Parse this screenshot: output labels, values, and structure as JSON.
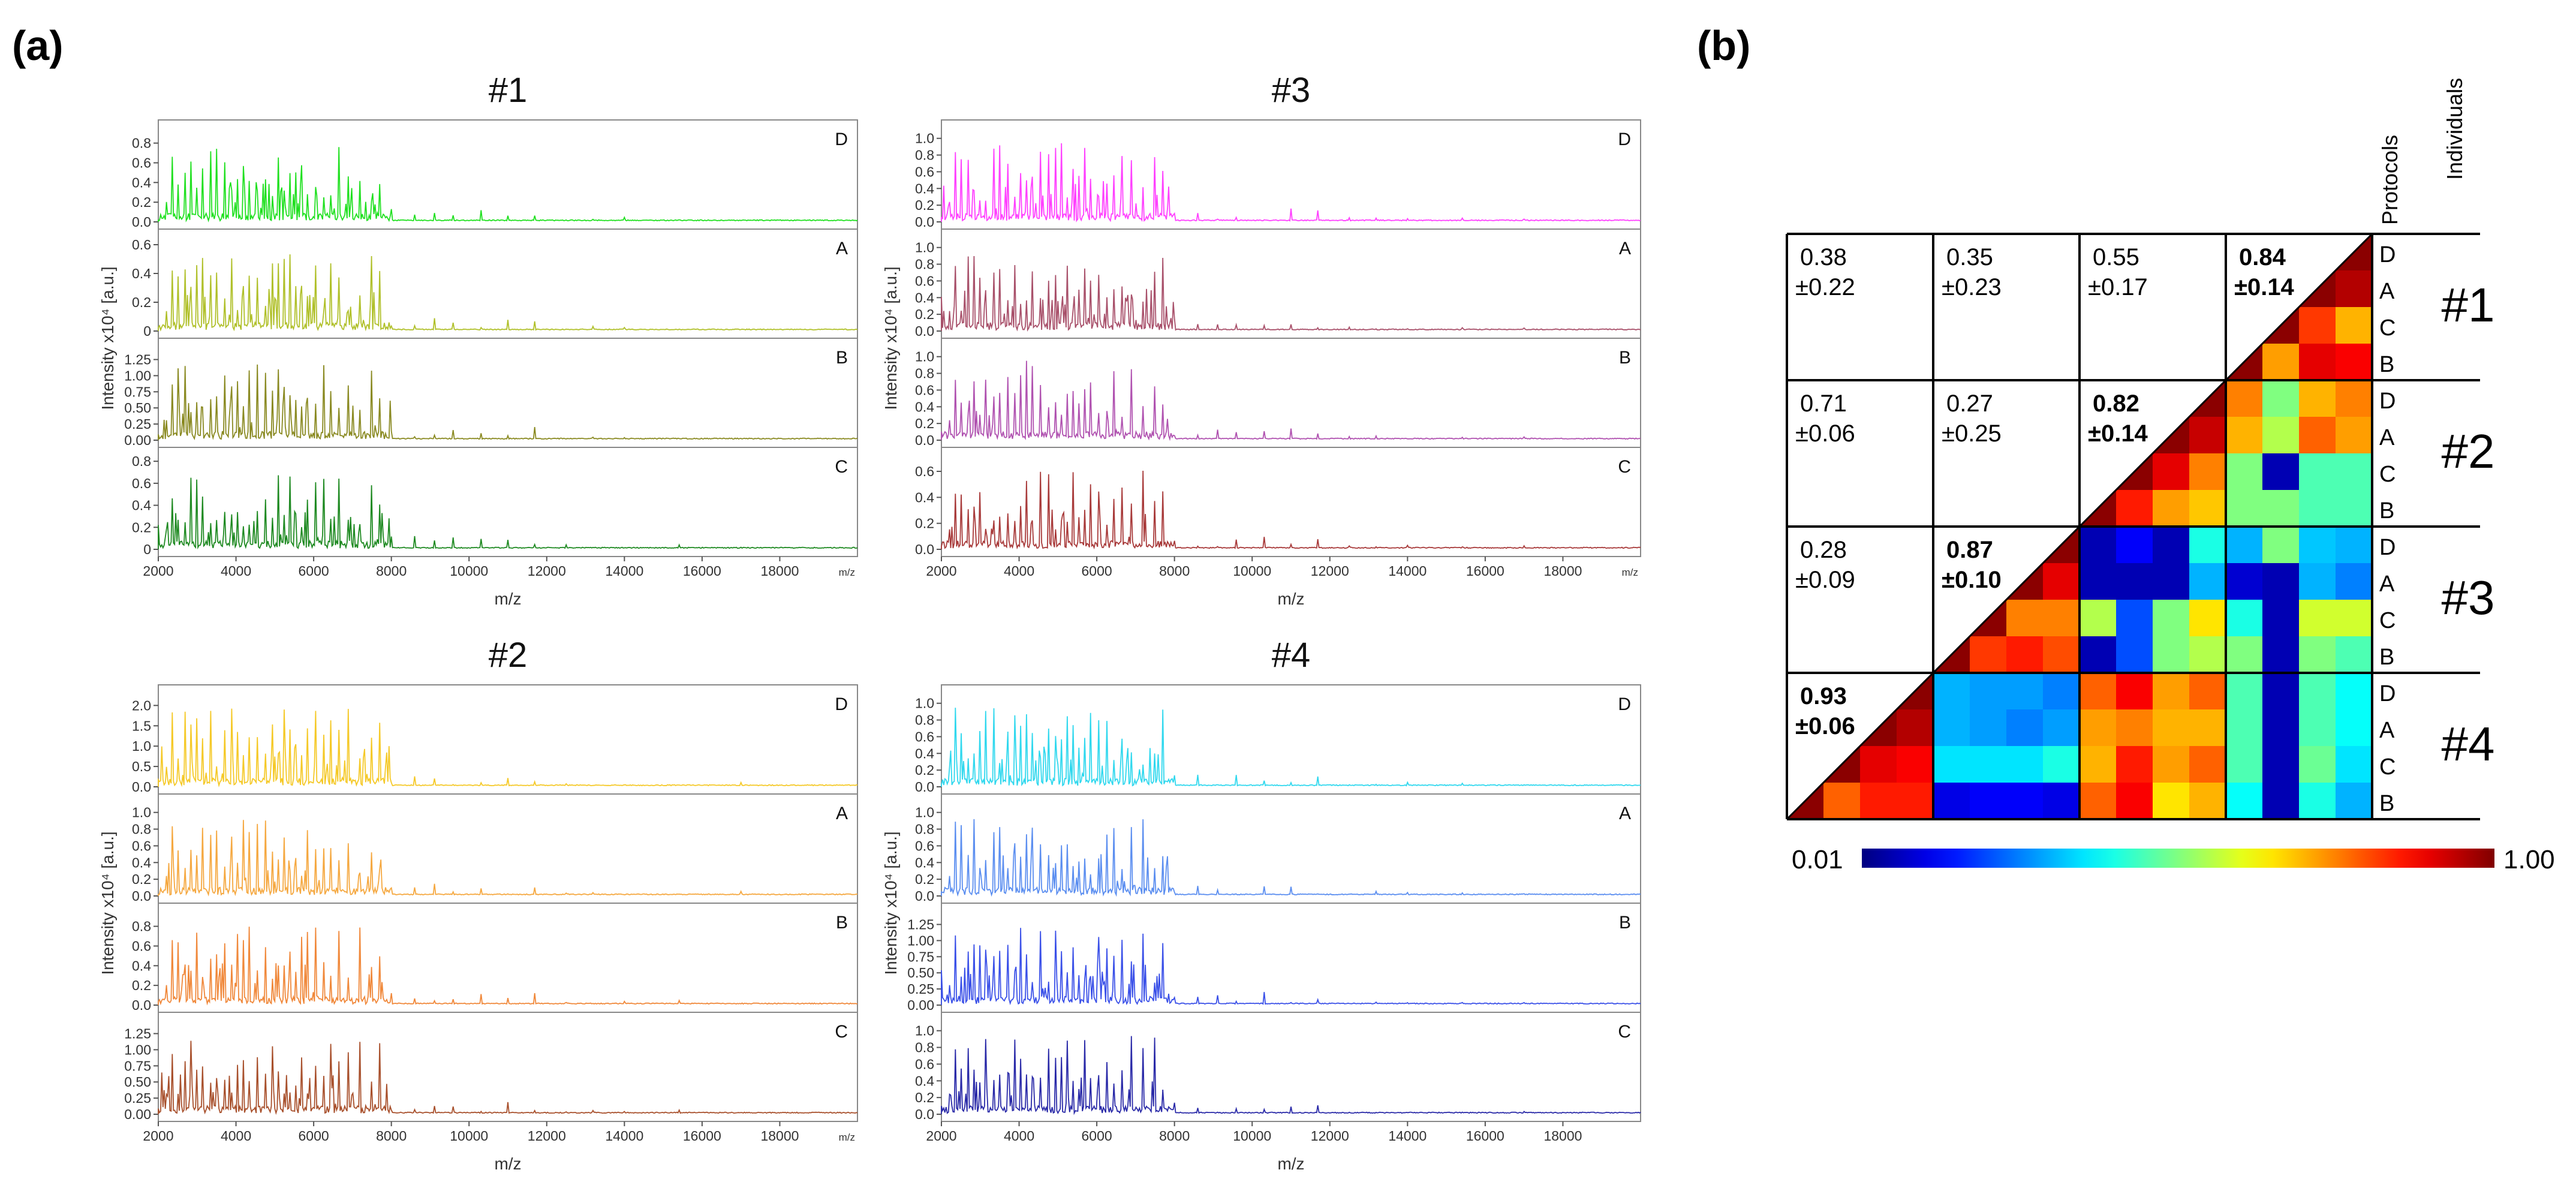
{
  "panel_a_label": "(a)",
  "panel_b_label": "(b)",
  "colors": {
    "1": [
      "#20e020",
      "#b0c02a",
      "#8a8a22",
      "#1f8a22"
    ],
    "3": [
      "#ff40ff",
      "#a8506a",
      "#b052b0",
      "#a83a3a"
    ],
    "2": [
      "#f5c928",
      "#f5a840",
      "#f0883a",
      "#a8502c"
    ],
    "4": [
      "#30d8ee",
      "#5b8ef0",
      "#3a50e8",
      "#2a2aa8"
    ]
  },
  "chart_data": [
    {
      "type": "line",
      "title": "#1",
      "xlabel": "m/z",
      "ylabel": "Intensity x10⁴ [a.u.]",
      "xlim": [
        2000,
        20000
      ],
      "x_ticks": [
        "2000",
        "4000",
        "6000",
        "8000",
        "10000",
        "12000",
        "14000",
        "16000",
        "18000"
      ],
      "x_unit": "m/z",
      "series": [
        {
          "name": "D",
          "ymax": 0.95,
          "y_ticks": [
            "0.8",
            "0.6",
            "0.4",
            "0.2",
            "0.0"
          ]
        },
        {
          "name": "A",
          "ymax": 0.65,
          "y_ticks": [
            "0.6",
            "0.4",
            "0.2",
            "0"
          ]
        },
        {
          "name": "B",
          "ymax": 1.45,
          "y_ticks": [
            "1.25",
            "1.00",
            "0.75",
            "0.50",
            "0.25",
            "0.00"
          ]
        },
        {
          "name": "C",
          "ymax": 0.85,
          "y_ticks": [
            "0.8",
            "0.6",
            "0.4",
            "0.2",
            "0"
          ]
        }
      ]
    },
    {
      "type": "line",
      "title": "#3",
      "xlabel": "m/z",
      "ylabel": "Intensity x10⁴ [a.u.]",
      "xlim": [
        2000,
        20000
      ],
      "x_ticks": [
        "2000",
        "4000",
        "6000",
        "8000",
        "10000",
        "12000",
        "14000",
        "16000",
        "18000"
      ],
      "x_unit": "m/z",
      "series": [
        {
          "name": "D",
          "ymax": 1.12,
          "y_ticks": [
            "1.0",
            "0.8",
            "0.6",
            "0.4",
            "0.2",
            "0.0"
          ]
        },
        {
          "name": "A",
          "ymax": 1.12,
          "y_ticks": [
            "1.0",
            "0.8",
            "0.6",
            "0.4",
            "0.2",
            "0.0"
          ]
        },
        {
          "name": "B",
          "ymax": 1.12,
          "y_ticks": [
            "1.0",
            "0.8",
            "0.6",
            "0.4",
            "0.2",
            "0.0"
          ]
        },
        {
          "name": "C",
          "ymax": 0.72,
          "y_ticks": [
            "0.6",
            "0.4",
            "0.2",
            "0.0"
          ]
        }
      ]
    },
    {
      "type": "line",
      "title": "#2",
      "xlabel": "m/z",
      "ylabel": "Intensity x10⁴ [a.u.]",
      "xlim": [
        2000,
        20000
      ],
      "x_ticks": [
        "2000",
        "4000",
        "6000",
        "8000",
        "10000",
        "12000",
        "14000",
        "16000",
        "18000"
      ],
      "x_unit": "m/z",
      "series": [
        {
          "name": "D",
          "ymax": 2.3,
          "y_ticks": [
            "2.0",
            "1.5",
            "1.0",
            "0.5",
            "0.0"
          ]
        },
        {
          "name": "A",
          "ymax": 1.12,
          "y_ticks": [
            "1.0",
            "0.8",
            "0.6",
            "0.4",
            "0.2",
            "0.0"
          ]
        },
        {
          "name": "B",
          "ymax": 0.95,
          "y_ticks": [
            "0.8",
            "0.6",
            "0.4",
            "0.2",
            "0.0"
          ]
        },
        {
          "name": "C",
          "ymax": 1.45,
          "y_ticks": [
            "1.25",
            "1.00",
            "0.75",
            "0.50",
            "0.25",
            "0.00"
          ]
        }
      ]
    },
    {
      "type": "line",
      "title": "#4",
      "xlabel": "m/z",
      "ylabel": "Intensity x10⁴ [a.u.]",
      "xlim": [
        2000,
        20000
      ],
      "x_ticks": [
        "2000",
        "4000",
        "6000",
        "8000",
        "10000",
        "12000",
        "14000",
        "16000",
        "18000"
      ],
      "x_unit": "",
      "series": [
        {
          "name": "D",
          "ymax": 1.12,
          "y_ticks": [
            "1.0",
            "0.8",
            "0.6",
            "0.4",
            "0.2",
            "0.0"
          ]
        },
        {
          "name": "A",
          "ymax": 1.12,
          "y_ticks": [
            "1.0",
            "0.8",
            "0.6",
            "0.4",
            "0.2",
            "0.0"
          ]
        },
        {
          "name": "B",
          "ymax": 1.45,
          "y_ticks": [
            "1.25",
            "1.00",
            "0.75",
            "0.50",
            "0.25",
            "0.00"
          ]
        },
        {
          "name": "C",
          "ymax": 1.12,
          "y_ticks": [
            "1.0",
            "0.8",
            "0.6",
            "0.4",
            "0.2",
            "0.0"
          ]
        }
      ]
    },
    {
      "type": "heatmap",
      "col_headers": [
        "Protocols",
        "Individuals"
      ],
      "protocols": [
        "D",
        "A",
        "C",
        "B"
      ],
      "individuals": [
        "#1",
        "#2",
        "#3",
        "#4"
      ],
      "colorbar": {
        "min": "0.01",
        "max": "1.00"
      },
      "pair_stats": [
        {
          "row": 0,
          "col": 0,
          "mean": "0.38",
          "sd": "±0.22",
          "bold": false
        },
        {
          "row": 0,
          "col": 1,
          "mean": "0.35",
          "sd": "±0.23",
          "bold": false
        },
        {
          "row": 0,
          "col": 2,
          "mean": "0.55",
          "sd": "±0.17",
          "bold": false
        },
        {
          "row": 0,
          "col": 3,
          "mean": "0.84",
          "sd": "±0.14",
          "bold": true
        },
        {
          "row": 1,
          "col": 0,
          "mean": "0.71",
          "sd": "±0.06",
          "bold": false
        },
        {
          "row": 1,
          "col": 1,
          "mean": "0.27",
          "sd": "±0.25",
          "bold": false
        },
        {
          "row": 1,
          "col": 2,
          "mean": "0.82",
          "sd": "±0.14",
          "bold": true
        },
        {
          "row": 2,
          "col": 0,
          "mean": "0.28",
          "sd": "±0.09",
          "bold": false
        },
        {
          "row": 2,
          "col": 1,
          "mean": "0.87",
          "sd": "±0.10",
          "bold": true
        },
        {
          "row": 3,
          "col": 0,
          "mean": "0.93",
          "sd": "±0.06",
          "bold": true
        }
      ],
      "matrix_lower": [
        [
          null,
          null,
          null,
          null,
          null,
          null,
          null,
          null,
          null,
          null,
          null,
          null,
          null,
          null,
          null,
          null
        ],
        [
          null,
          null,
          null,
          null,
          null,
          null,
          null,
          null,
          null,
          null,
          null,
          null,
          null,
          null,
          null,
          0.95
        ],
        [
          null,
          null,
          null,
          null,
          null,
          null,
          null,
          null,
          null,
          null,
          null,
          null,
          null,
          null,
          0.82,
          0.7
        ],
        [
          null,
          null,
          null,
          null,
          null,
          null,
          null,
          null,
          null,
          null,
          null,
          null,
          null,
          0.72,
          0.9,
          0.88
        ],
        [
          null,
          null,
          null,
          null,
          null,
          null,
          null,
          null,
          null,
          null,
          null,
          null,
          0.75,
          0.5,
          0.7,
          0.75
        ],
        [
          null,
          null,
          null,
          null,
          null,
          null,
          null,
          null,
          null,
          null,
          null,
          0.93,
          0.7,
          0.55,
          0.78,
          0.72
        ],
        [
          null,
          null,
          null,
          null,
          null,
          null,
          null,
          null,
          null,
          null,
          0.9,
          0.75,
          0.5,
          0.05,
          0.45,
          0.45
        ],
        [
          null,
          null,
          null,
          null,
          null,
          null,
          null,
          null,
          null,
          0.85,
          0.72,
          0.68,
          0.5,
          0.5,
          0.45,
          0.45
        ],
        [
          null,
          null,
          null,
          null,
          null,
          null,
          null,
          null,
          0.05,
          0.12,
          0.05,
          0.4,
          0.3,
          0.5,
          0.32,
          0.3
        ],
        [
          null,
          null,
          null,
          null,
          null,
          null,
          null,
          0.9,
          0.05,
          0.05,
          0.05,
          0.3,
          0.08,
          0.05,
          0.3,
          0.25
        ],
        [
          null,
          null,
          null,
          null,
          null,
          null,
          0.75,
          0.75,
          0.55,
          0.2,
          0.5,
          0.65,
          0.4,
          0.05,
          0.58,
          0.58
        ],
        [
          null,
          null,
          null,
          null,
          null,
          0.82,
          0.85,
          0.8,
          0.05,
          0.2,
          0.5,
          0.55,
          0.5,
          0.05,
          0.5,
          0.45
        ],
        [
          null,
          null,
          null,
          null,
          0.3,
          0.28,
          0.28,
          0.25,
          0.78,
          0.88,
          0.72,
          0.78,
          0.45,
          0.05,
          0.45,
          0.38
        ],
        [
          null,
          null,
          null,
          0.95,
          0.3,
          0.28,
          0.25,
          0.28,
          0.72,
          0.75,
          0.7,
          0.7,
          0.45,
          0.05,
          0.45,
          0.38
        ],
        [
          null,
          null,
          0.9,
          0.88,
          0.35,
          0.35,
          0.35,
          0.4,
          0.7,
          0.85,
          0.72,
          0.78,
          0.45,
          0.05,
          0.48,
          0.35
        ],
        [
          null,
          0.78,
          0.85,
          0.85,
          0.1,
          0.12,
          0.12,
          0.1,
          0.78,
          0.88,
          0.65,
          0.7,
          0.38,
          0.05,
          0.4,
          0.3
        ]
      ]
    }
  ]
}
